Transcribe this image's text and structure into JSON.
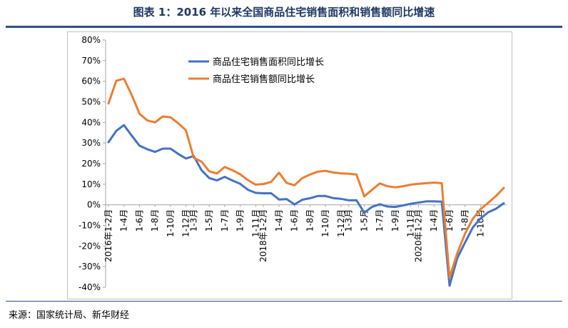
{
  "title": "图表 1：2016 年以来全国商品住宅销售面积和销售额同比增速",
  "source": "来源：国家统计局、新华财经",
  "colors": {
    "area": "#4472c4",
    "sales": "#ed7d31",
    "title": "#1f3864"
  },
  "chart_data": {
    "type": "line",
    "title": "",
    "xlabel": "",
    "ylabel": "",
    "ylim": [
      -40,
      80
    ],
    "yticks": [
      -40,
      -30,
      -20,
      -10,
      0,
      10,
      20,
      30,
      40,
      50,
      60,
      70,
      80
    ],
    "ytick_labels": [
      "-40%",
      "-30%",
      "-20%",
      "-10%",
      "0%",
      "10%",
      "20%",
      "30%",
      "40%",
      "50%",
      "60%",
      "70%",
      "80%"
    ],
    "x_tick_labels": [
      {
        "index": 0,
        "label": "2016年1-2月"
      },
      {
        "index": 2,
        "label": "1-4月"
      },
      {
        "index": 4,
        "label": "1-6月"
      },
      {
        "index": 6,
        "label": "1-8月"
      },
      {
        "index": 8,
        "label": "1-10月"
      },
      {
        "index": 10,
        "label": "1-12月"
      },
      {
        "index": 11,
        "label": "1-3月"
      },
      {
        "index": 13,
        "label": "1-5月"
      },
      {
        "index": 15,
        "label": "1-7月"
      },
      {
        "index": 17,
        "label": "1-9月"
      },
      {
        "index": 19,
        "label": "1-11月"
      },
      {
        "index": 20,
        "label": "2018年1-2月"
      },
      {
        "index": 22,
        "label": "1-4月"
      },
      {
        "index": 24,
        "label": "1-6月"
      },
      {
        "index": 26,
        "label": "1-8月"
      },
      {
        "index": 28,
        "label": "1-10月"
      },
      {
        "index": 30,
        "label": "1-12月"
      },
      {
        "index": 31,
        "label": "1-3月"
      },
      {
        "index": 33,
        "label": "1-5月"
      },
      {
        "index": 35,
        "label": "1-7月"
      },
      {
        "index": 37,
        "label": "1-9月"
      },
      {
        "index": 39,
        "label": "1-11月"
      },
      {
        "index": 40,
        "label": "2020年1-2月"
      },
      {
        "index": 42,
        "label": "1-4月"
      },
      {
        "index": 44,
        "label": "1-6月"
      },
      {
        "index": 46,
        "label": "1-8月"
      },
      {
        "index": 48,
        "label": "1-10月"
      }
    ],
    "legend_position": "top-center",
    "series": [
      {
        "name": "商品住宅销售面积同比增长",
        "color": "#4472c4",
        "values": [
          30.4,
          35.9,
          38.7,
          33.6,
          28.7,
          27.0,
          25.7,
          27.3,
          27.3,
          24.7,
          22.5,
          23.7,
          16.8,
          13.0,
          11.9,
          13.6,
          11.8,
          10.2,
          7.3,
          5.8,
          5.6,
          5.6,
          2.6,
          2.8,
          0.2,
          2.5,
          3.2,
          4.3,
          4.3,
          3.3,
          2.9,
          2.2,
          2.2,
          -3.8,
          -1.0,
          0.3,
          -0.8,
          -1.0,
          -0.3,
          0.5,
          1.1,
          1.7,
          1.7,
          1.5,
          -39.2,
          -25.9,
          -18.3,
          -11.0,
          -6.6,
          -3.6,
          -1.9,
          0.8
        ]
      },
      {
        "name": "商品住宅销售额同比增长",
        "color": "#ed7d31",
        "values": [
          49.2,
          60.2,
          61.2,
          53.3,
          44.2,
          41.0,
          40.0,
          42.9,
          42.5,
          39.6,
          36.2,
          22.8,
          21.0,
          16.3,
          15.2,
          18.4,
          16.8,
          14.8,
          12.0,
          9.8,
          10.1,
          11.2,
          15.6,
          10.6,
          9.5,
          13.0,
          14.7,
          16.1,
          16.5,
          15.7,
          15.3,
          15.1,
          14.7,
          4.1,
          7.3,
          10.4,
          9.0,
          8.5,
          9.0,
          9.8,
          10.2,
          10.5,
          10.8,
          10.5,
          -35.4,
          -23.5,
          -14.0,
          -6.8,
          -2.1,
          1.0,
          4.3,
          8.2
        ]
      }
    ]
  }
}
